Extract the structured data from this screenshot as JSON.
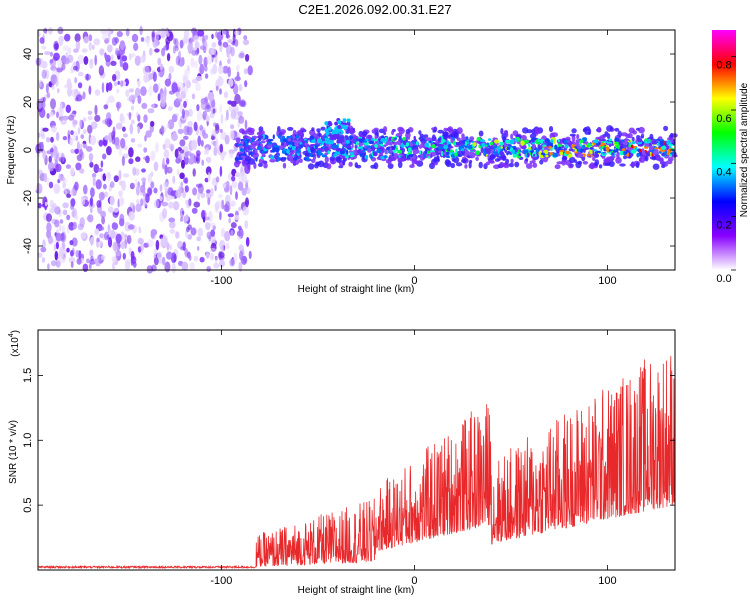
{
  "title": "C2E1.2026.092.00.31.E27",
  "chart_data": [
    {
      "type": "heatmap",
      "xlabel": "Height of straight line (km)",
      "ylabel": "Frequency (Hz)",
      "xlim": [
        -195,
        135
      ],
      "ylim": [
        -50,
        50
      ],
      "xticks": [
        -100,
        0,
        100
      ],
      "yticks": [
        -40,
        -20,
        0,
        20,
        40
      ],
      "noise_region_x": [
        -195,
        -85
      ],
      "signal_band": {
        "x_start": -92,
        "x_end": 135,
        "center_hz": 1,
        "half_width_hz": 5
      },
      "colorbar": {
        "label": "Normalized spectral amplitude",
        "range": [
          0.0,
          0.9
        ],
        "ticks": [
          "0.0",
          "0.2",
          "0.4",
          "0.6",
          "0.8"
        ],
        "colors": [
          "#ffffff",
          "#8800ff",
          "#0000ff",
          "#00ffff",
          "#00ff00",
          "#ffff00",
          "#ff0000",
          "#ff00ff"
        ]
      }
    },
    {
      "type": "line",
      "xlabel": "Height of straight line (km)",
      "ylabel": "SNR (10 * v/v)",
      "scale_label": "(x10",
      "scale_exp": "4",
      "scale_close": ")",
      "xlim": [
        -195,
        135
      ],
      "ylim": [
        0,
        1.85
      ],
      "xticks": [
        -100,
        0,
        100
      ],
      "yticks": [
        "0.5",
        "1.0",
        "1.5"
      ],
      "color": "#e8282a",
      "segments": [
        {
          "x_start": -195,
          "x_end": -82,
          "base": 0.0,
          "spread": 0.015
        },
        {
          "x_start": -82,
          "x_end": -20,
          "base": 0.06,
          "spread": 0.5
        },
        {
          "x_start": -20,
          "x_end": 40,
          "base": 0.35,
          "spread": 1.0
        },
        {
          "x_start": 40,
          "x_end": 135,
          "base": 0.5,
          "spread": 1.3
        }
      ]
    }
  ]
}
